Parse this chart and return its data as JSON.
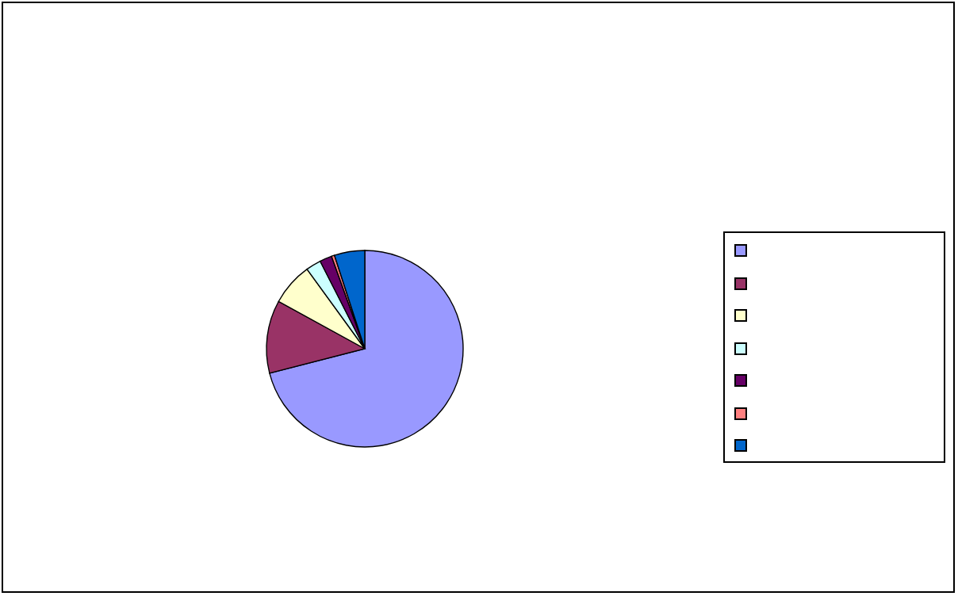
{
  "chart_data": {
    "type": "pie",
    "categories": [
      null,
      null,
      null,
      null,
      null,
      null,
      null
    ],
    "values": [
      71,
      12,
      7,
      2.5,
      2,
      0.5,
      5
    ],
    "colors": [
      "#9999ff",
      "#993366",
      "#ffffcc",
      "#ccffff",
      "#660066",
      "#ff8080",
      "#0066cc"
    ]
  }
}
